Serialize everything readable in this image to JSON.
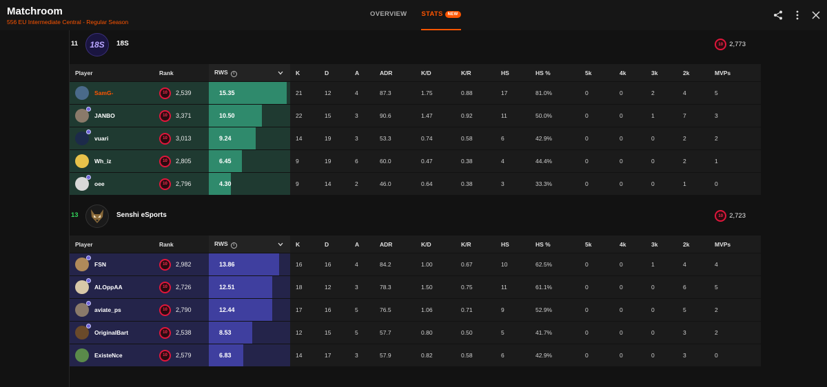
{
  "header": {
    "title": "Matchroom",
    "subtitle": "556 EU Intermediate Central - Regular Season",
    "tabs": [
      {
        "label": "OVERVIEW",
        "active": false
      },
      {
        "label": "STATS",
        "active": true,
        "badge": "NEW"
      }
    ],
    "icons": [
      "share-icon",
      "more-vertical-icon",
      "close-icon"
    ]
  },
  "columns": [
    "Player",
    "Rank",
    "RWS",
    "K",
    "D",
    "A",
    "ADR",
    "K/D",
    "K/R",
    "HS",
    "HS %",
    "5k",
    "4k",
    "3k",
    "2k",
    "MVPs"
  ],
  "teams": [
    {
      "score": "11",
      "score_color": "#ffffff",
      "name": "18S",
      "logo_text": "18S",
      "elo": "2,773",
      "level": "10",
      "bar_color": "#2f8a6c",
      "row_tint": "#1f3a31",
      "rws_max": 16,
      "players": [
        {
          "name": "SamG-",
          "me": true,
          "rank": "2,539",
          "rws": "15.35",
          "rws_value": 15.35,
          "k": "21",
          "d": "12",
          "a": "4",
          "adr": "87.3",
          "kd": "1.75",
          "kr": "0.88",
          "hs": "17",
          "hsp": "81.0%",
          "k5": "0",
          "k4": "0",
          "k3": "2",
          "k2": "4",
          "mvps": "5",
          "avatar_color": "#4a6a8a",
          "prem": false
        },
        {
          "name": "JANBO",
          "me": false,
          "rank": "3,371",
          "rws": "10.50",
          "rws_value": 10.5,
          "k": "22",
          "d": "15",
          "a": "3",
          "adr": "90.6",
          "kd": "1.47",
          "kr": "0.92",
          "hs": "11",
          "hsp": "50.0%",
          "k5": "0",
          "k4": "0",
          "k3": "1",
          "k2": "7",
          "mvps": "3",
          "avatar_color": "#8a7a6a",
          "prem": true
        },
        {
          "name": "vuari",
          "me": false,
          "rank": "3,013",
          "rws": "9.24",
          "rws_value": 9.24,
          "k": "14",
          "d": "19",
          "a": "3",
          "adr": "53.3",
          "kd": "0.74",
          "kr": "0.58",
          "hs": "6",
          "hsp": "42.9%",
          "k5": "0",
          "k4": "0",
          "k3": "0",
          "k2": "2",
          "mvps": "2",
          "avatar_color": "#1c2a4a",
          "prem": true
        },
        {
          "name": "Wh_iz",
          "me": false,
          "rank": "2,805",
          "rws": "6.45",
          "rws_value": 6.45,
          "k": "9",
          "d": "19",
          "a": "6",
          "adr": "60.0",
          "kd": "0.47",
          "kr": "0.38",
          "hs": "4",
          "hsp": "44.4%",
          "k5": "0",
          "k4": "0",
          "k3": "0",
          "k2": "2",
          "mvps": "1",
          "avatar_color": "#e8c24a",
          "prem": false
        },
        {
          "name": "oee",
          "me": false,
          "rank": "2,796",
          "rws": "4.30",
          "rws_value": 4.3,
          "k": "9",
          "d": "14",
          "a": "2",
          "adr": "46.0",
          "kd": "0.64",
          "kr": "0.38",
          "hs": "3",
          "hsp": "33.3%",
          "k5": "0",
          "k4": "0",
          "k3": "0",
          "k2": "1",
          "mvps": "0",
          "avatar_color": "#d8d8d8",
          "prem": true
        }
      ]
    },
    {
      "score": "13",
      "score_color": "#32d35a",
      "name": "Senshi eSports",
      "logo_text": "",
      "elo": "2,723",
      "level": "10",
      "bar_color": "#3f3f9f",
      "row_tint": "#24244a",
      "rws_max": 16,
      "players": [
        {
          "name": "FSN",
          "me": false,
          "rank": "2,982",
          "rws": "13.86",
          "rws_value": 13.86,
          "k": "16",
          "d": "16",
          "a": "4",
          "adr": "84.2",
          "kd": "1.00",
          "kr": "0.67",
          "hs": "10",
          "hsp": "62.5%",
          "k5": "0",
          "k4": "0",
          "k3": "1",
          "k2": "4",
          "mvps": "4",
          "avatar_color": "#b08a5a",
          "prem": true
        },
        {
          "name": "ALOppAA",
          "me": false,
          "rank": "2,726",
          "rws": "12.51",
          "rws_value": 12.51,
          "k": "18",
          "d": "12",
          "a": "3",
          "adr": "78.3",
          "kd": "1.50",
          "kr": "0.75",
          "hs": "11",
          "hsp": "61.1%",
          "k5": "0",
          "k4": "0",
          "k3": "0",
          "k2": "6",
          "mvps": "5",
          "avatar_color": "#d8c8a8",
          "prem": true
        },
        {
          "name": "aviate_ps",
          "me": false,
          "rank": "2,790",
          "rws": "12.44",
          "rws_value": 12.44,
          "k": "17",
          "d": "16",
          "a": "5",
          "adr": "76.5",
          "kd": "1.06",
          "kr": "0.71",
          "hs": "9",
          "hsp": "52.9%",
          "k5": "0",
          "k4": "0",
          "k3": "0",
          "k2": "5",
          "mvps": "2",
          "avatar_color": "#8a7a6a",
          "prem": true
        },
        {
          "name": "OriginalBart",
          "me": false,
          "rank": "2,538",
          "rws": "8.53",
          "rws_value": 8.53,
          "k": "12",
          "d": "15",
          "a": "5",
          "adr": "57.7",
          "kd": "0.80",
          "kr": "0.50",
          "hs": "5",
          "hsp": "41.7%",
          "k5": "0",
          "k4": "0",
          "k3": "0",
          "k2": "3",
          "mvps": "2",
          "avatar_color": "#6a4a2a",
          "prem": true
        },
        {
          "name": "ExisteNce",
          "me": false,
          "rank": "2,579",
          "rws": "6.83",
          "rws_value": 6.83,
          "k": "14",
          "d": "17",
          "a": "3",
          "adr": "57.9",
          "kd": "0.82",
          "kr": "0.58",
          "hs": "6",
          "hsp": "42.9%",
          "k5": "0",
          "k4": "0",
          "k3": "0",
          "k2": "3",
          "mvps": "0",
          "avatar_color": "#5a8a4a",
          "prem": false
        }
      ]
    }
  ]
}
